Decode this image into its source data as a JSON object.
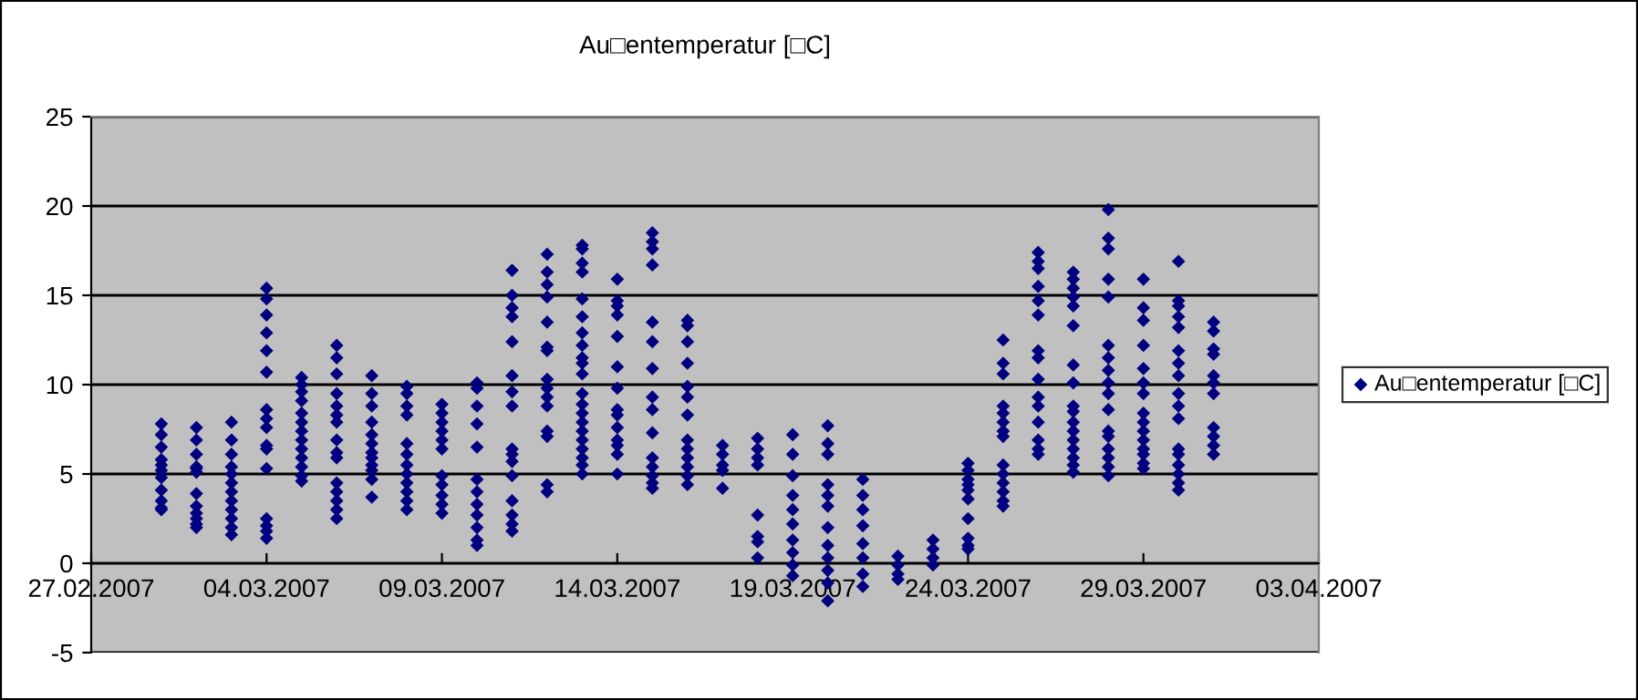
{
  "chart_data": {
    "type": "scatter",
    "title": "Au□entemperatur [□C]",
    "xlim": [
      "2007-02-27",
      "2007-04-03"
    ],
    "xticks": [
      {
        "value": "2007-02-27",
        "label": "27.02.2007"
      },
      {
        "value": "2007-03-04",
        "label": "04.03.2007"
      },
      {
        "value": "2007-03-09",
        "label": "09.03.2007"
      },
      {
        "value": "2007-03-14",
        "label": "14.03.2007"
      },
      {
        "value": "2007-03-19",
        "label": "19.03.2007"
      },
      {
        "value": "2007-03-24",
        "label": "24.03.2007"
      },
      {
        "value": "2007-03-29",
        "label": "29.03.2007"
      },
      {
        "value": "2007-04-03",
        "label": "03.04.2007"
      }
    ],
    "ylim": [
      -5,
      25
    ],
    "yticks": [
      -5,
      0,
      5,
      10,
      15,
      20,
      25
    ],
    "grid": "y",
    "legend": "right",
    "marker": "diamond",
    "series": [
      {
        "name": "Au□entemperatur [□C]",
        "color": "#000080",
        "x": [
          "2007-03-01",
          "2007-03-01",
          "2007-03-01",
          "2007-03-01",
          "2007-03-01",
          "2007-03-01",
          "2007-03-01",
          "2007-03-01",
          "2007-03-01",
          "2007-03-01",
          "2007-03-01",
          "2007-03-02",
          "2007-03-02",
          "2007-03-02",
          "2007-03-02",
          "2007-03-02",
          "2007-03-02",
          "2007-03-02",
          "2007-03-02",
          "2007-03-02",
          "2007-03-02",
          "2007-03-02",
          "2007-03-02",
          "2007-03-03",
          "2007-03-03",
          "2007-03-03",
          "2007-03-03",
          "2007-03-03",
          "2007-03-03",
          "2007-03-03",
          "2007-03-03",
          "2007-03-03",
          "2007-03-03",
          "2007-03-03",
          "2007-03-03",
          "2007-03-04",
          "2007-03-04",
          "2007-03-04",
          "2007-03-04",
          "2007-03-04",
          "2007-03-04",
          "2007-03-04",
          "2007-03-04",
          "2007-03-04",
          "2007-03-04",
          "2007-03-04",
          "2007-03-04",
          "2007-03-04",
          "2007-03-04",
          "2007-03-04",
          "2007-03-04",
          "2007-03-05",
          "2007-03-05",
          "2007-03-05",
          "2007-03-05",
          "2007-03-05",
          "2007-03-05",
          "2007-03-05",
          "2007-03-05",
          "2007-03-05",
          "2007-03-05",
          "2007-03-05",
          "2007-03-05",
          "2007-03-05",
          "2007-03-06",
          "2007-03-06",
          "2007-03-06",
          "2007-03-06",
          "2007-03-06",
          "2007-03-06",
          "2007-03-06",
          "2007-03-06",
          "2007-03-06",
          "2007-03-06",
          "2007-03-06",
          "2007-03-06",
          "2007-03-06",
          "2007-03-06",
          "2007-03-06",
          "2007-03-07",
          "2007-03-07",
          "2007-03-07",
          "2007-03-07",
          "2007-03-07",
          "2007-03-07",
          "2007-03-07",
          "2007-03-07",
          "2007-03-07",
          "2007-03-07",
          "2007-03-07",
          "2007-03-07",
          "2007-03-08",
          "2007-03-08",
          "2007-03-08",
          "2007-03-08",
          "2007-03-08",
          "2007-03-08",
          "2007-03-08",
          "2007-03-08",
          "2007-03-08",
          "2007-03-08",
          "2007-03-08",
          "2007-03-08",
          "2007-03-09",
          "2007-03-09",
          "2007-03-09",
          "2007-03-09",
          "2007-03-09",
          "2007-03-09",
          "2007-03-09",
          "2007-03-09",
          "2007-03-09",
          "2007-03-09",
          "2007-03-09",
          "2007-03-10",
          "2007-03-10",
          "2007-03-10",
          "2007-03-10",
          "2007-03-10",
          "2007-03-10",
          "2007-03-10",
          "2007-03-10",
          "2007-03-10",
          "2007-03-10",
          "2007-03-10",
          "2007-03-10",
          "2007-03-11",
          "2007-03-11",
          "2007-03-11",
          "2007-03-11",
          "2007-03-11",
          "2007-03-11",
          "2007-03-11",
          "2007-03-11",
          "2007-03-11",
          "2007-03-11",
          "2007-03-11",
          "2007-03-11",
          "2007-03-11",
          "2007-03-11",
          "2007-03-11",
          "2007-03-11",
          "2007-03-12",
          "2007-03-12",
          "2007-03-12",
          "2007-03-12",
          "2007-03-12",
          "2007-03-12",
          "2007-03-12",
          "2007-03-12",
          "2007-03-12",
          "2007-03-12",
          "2007-03-12",
          "2007-03-12",
          "2007-03-12",
          "2007-03-12",
          "2007-03-12",
          "2007-03-13",
          "2007-03-13",
          "2007-03-13",
          "2007-03-13",
          "2007-03-13",
          "2007-03-13",
          "2007-03-13",
          "2007-03-13",
          "2007-03-13",
          "2007-03-13",
          "2007-03-13",
          "2007-03-13",
          "2007-03-13",
          "2007-03-13",
          "2007-03-13",
          "2007-03-13",
          "2007-03-13",
          "2007-03-13",
          "2007-03-13",
          "2007-03-13",
          "2007-03-13",
          "2007-03-14",
          "2007-03-14",
          "2007-03-14",
          "2007-03-14",
          "2007-03-14",
          "2007-03-14",
          "2007-03-14",
          "2007-03-14",
          "2007-03-14",
          "2007-03-14",
          "2007-03-14",
          "2007-03-14",
          "2007-03-14",
          "2007-03-14",
          "2007-03-15",
          "2007-03-15",
          "2007-03-15",
          "2007-03-15",
          "2007-03-15",
          "2007-03-15",
          "2007-03-15",
          "2007-03-15",
          "2007-03-15",
          "2007-03-15",
          "2007-03-15",
          "2007-03-15",
          "2007-03-15",
          "2007-03-15",
          "2007-03-15",
          "2007-03-16",
          "2007-03-16",
          "2007-03-16",
          "2007-03-16",
          "2007-03-16",
          "2007-03-16",
          "2007-03-16",
          "2007-03-16",
          "2007-03-16",
          "2007-03-16",
          "2007-03-16",
          "2007-03-16",
          "2007-03-16",
          "2007-03-17",
          "2007-03-17",
          "2007-03-17",
          "2007-03-17",
          "2007-03-17",
          "2007-03-18",
          "2007-03-18",
          "2007-03-18",
          "2007-03-18",
          "2007-03-18",
          "2007-03-18",
          "2007-03-18",
          "2007-03-18",
          "2007-03-19",
          "2007-03-19",
          "2007-03-19",
          "2007-03-19",
          "2007-03-19",
          "2007-03-19",
          "2007-03-19",
          "2007-03-19",
          "2007-03-19",
          "2007-03-19",
          "2007-03-20",
          "2007-03-20",
          "2007-03-20",
          "2007-03-20",
          "2007-03-20",
          "2007-03-20",
          "2007-03-20",
          "2007-03-20",
          "2007-03-20",
          "2007-03-20",
          "2007-03-20",
          "2007-03-20",
          "2007-03-21",
          "2007-03-21",
          "2007-03-21",
          "2007-03-21",
          "2007-03-21",
          "2007-03-21",
          "2007-03-21",
          "2007-03-21",
          "2007-03-22",
          "2007-03-22",
          "2007-03-22",
          "2007-03-22",
          "2007-03-23",
          "2007-03-23",
          "2007-03-23",
          "2007-03-23",
          "2007-03-24",
          "2007-03-24",
          "2007-03-24",
          "2007-03-24",
          "2007-03-24",
          "2007-03-24",
          "2007-03-24",
          "2007-03-24",
          "2007-03-24",
          "2007-03-24",
          "2007-03-25",
          "2007-03-25",
          "2007-03-25",
          "2007-03-25",
          "2007-03-25",
          "2007-03-25",
          "2007-03-25",
          "2007-03-25",
          "2007-03-25",
          "2007-03-25",
          "2007-03-25",
          "2007-03-25",
          "2007-03-25",
          "2007-03-25",
          "2007-03-26",
          "2007-03-26",
          "2007-03-26",
          "2007-03-26",
          "2007-03-26",
          "2007-03-26",
          "2007-03-26",
          "2007-03-26",
          "2007-03-26",
          "2007-03-26",
          "2007-03-26",
          "2007-03-26",
          "2007-03-26",
          "2007-03-26",
          "2007-03-26",
          "2007-03-27",
          "2007-03-27",
          "2007-03-27",
          "2007-03-27",
          "2007-03-27",
          "2007-03-27",
          "2007-03-27",
          "2007-03-27",
          "2007-03-27",
          "2007-03-27",
          "2007-03-27",
          "2007-03-27",
          "2007-03-27",
          "2007-03-27",
          "2007-03-27",
          "2007-03-27",
          "2007-03-27",
          "2007-03-28",
          "2007-03-28",
          "2007-03-28",
          "2007-03-28",
          "2007-03-28",
          "2007-03-28",
          "2007-03-28",
          "2007-03-28",
          "2007-03-28",
          "2007-03-28",
          "2007-03-28",
          "2007-03-28",
          "2007-03-28",
          "2007-03-28",
          "2007-03-28",
          "2007-03-28",
          "2007-03-28",
          "2007-03-29",
          "2007-03-29",
          "2007-03-29",
          "2007-03-29",
          "2007-03-29",
          "2007-03-29",
          "2007-03-29",
          "2007-03-29",
          "2007-03-29",
          "2007-03-29",
          "2007-03-29",
          "2007-03-29",
          "2007-03-29",
          "2007-03-29",
          "2007-03-29",
          "2007-03-30",
          "2007-03-30",
          "2007-03-30",
          "2007-03-30",
          "2007-03-30",
          "2007-03-30",
          "2007-03-30",
          "2007-03-30",
          "2007-03-30",
          "2007-03-30",
          "2007-03-30",
          "2007-03-30",
          "2007-03-30",
          "2007-03-30",
          "2007-03-30",
          "2007-03-30",
          "2007-03-30",
          "2007-03-31",
          "2007-03-31",
          "2007-03-31",
          "2007-03-31",
          "2007-03-31",
          "2007-03-31",
          "2007-03-31",
          "2007-03-31",
          "2007-03-31",
          "2007-03-31",
          "2007-03-31"
        ],
        "values": [
          7.8,
          7.2,
          6.5,
          5.8,
          5.5,
          5.2,
          4.8,
          4.1,
          3.5,
          3.1,
          3.0,
          7.6,
          6.9,
          6.1,
          5.4,
          5.3,
          5.1,
          3.9,
          3.2,
          2.8,
          2.5,
          2.2,
          2.0,
          7.9,
          6.9,
          6.1,
          5.4,
          5.0,
          4.5,
          4.0,
          3.5,
          3.0,
          2.5,
          2.0,
          1.6,
          15.4,
          14.8,
          13.9,
          12.9,
          11.9,
          10.7,
          8.6,
          8.1,
          7.6,
          6.6,
          6.4,
          5.3,
          2.5,
          2.1,
          1.8,
          1.4,
          10.4,
          10.0,
          9.6,
          9.1,
          8.4,
          7.9,
          7.4,
          6.9,
          6.4,
          5.9,
          5.4,
          4.9,
          4.6,
          12.2,
          11.5,
          10.6,
          9.5,
          8.8,
          8.3,
          7.9,
          6.9,
          6.2,
          5.9,
          4.5,
          4.0,
          3.5,
          3.0,
          2.5,
          10.5,
          9.5,
          8.8,
          7.9,
          7.2,
          6.7,
          6.2,
          5.9,
          5.5,
          5.2,
          4.7,
          3.7,
          9.9,
          9.5,
          8.8,
          8.3,
          6.7,
          6.1,
          5.5,
          5.0,
          4.5,
          4.0,
          3.5,
          3.0,
          8.9,
          8.4,
          7.9,
          7.4,
          6.9,
          6.4,
          4.9,
          4.4,
          3.8,
          3.3,
          2.8,
          10.1,
          9.8,
          8.8,
          7.8,
          6.5,
          4.7,
          4.0,
          3.3,
          2.7,
          2.0,
          1.3,
          1.0,
          16.4,
          15.0,
          14.3,
          13.8,
          12.4,
          10.5,
          9.6,
          8.8,
          6.4,
          6.1,
          5.7,
          4.9,
          3.5,
          2.7,
          2.2,
          1.8,
          17.3,
          16.3,
          15.6,
          14.9,
          13.5,
          12.1,
          11.9,
          10.3,
          9.8,
          9.3,
          8.8,
          7.4,
          7.1,
          4.4,
          4.0,
          17.8,
          17.6,
          16.8,
          16.3,
          14.8,
          13.8,
          12.9,
          12.2,
          11.5,
          11.2,
          10.6,
          9.5,
          8.9,
          8.4,
          7.9,
          7.4,
          6.9,
          6.4,
          5.9,
          5.5,
          5.0,
          15.9,
          14.7,
          14.4,
          13.9,
          12.7,
          11.0,
          9.8,
          8.6,
          8.3,
          7.6,
          6.9,
          6.6,
          6.1,
          5.0,
          18.5,
          18.0,
          17.6,
          16.7,
          13.5,
          12.4,
          10.9,
          9.3,
          8.6,
          7.3,
          5.9,
          5.4,
          4.9,
          4.5,
          4.2,
          13.6,
          13.3,
          12.4,
          11.2,
          9.9,
          9.3,
          8.3,
          6.9,
          6.4,
          5.9,
          5.4,
          4.9,
          4.4,
          6.6,
          6.1,
          5.5,
          5.2,
          4.2,
          7.0,
          6.4,
          5.9,
          5.5,
          2.7,
          1.5,
          1.2,
          0.3,
          7.2,
          6.1,
          4.9,
          3.8,
          3.0,
          2.2,
          1.3,
          0.6,
          -0.1,
          -0.7,
          7.7,
          6.7,
          6.1,
          4.4,
          3.8,
          3.2,
          2.0,
          1.0,
          0.3,
          -0.4,
          -1.1,
          -2.1,
          4.7,
          3.8,
          3.0,
          2.1,
          1.1,
          0.3,
          -0.6,
          -1.3,
          0.4,
          -0.1,
          -0.6,
          -0.9,
          1.3,
          0.8,
          0.3,
          -0.1,
          5.6,
          5.2,
          4.7,
          4.4,
          4.1,
          3.6,
          2.5,
          1.4,
          1.0,
          0.8,
          12.5,
          11.2,
          10.6,
          8.8,
          8.4,
          7.9,
          7.4,
          7.1,
          5.5,
          5.0,
          4.5,
          4.0,
          3.5,
          3.2,
          17.4,
          16.9,
          16.5,
          15.5,
          14.7,
          13.9,
          11.9,
          11.5,
          10.3,
          9.3,
          8.8,
          7.9,
          6.9,
          6.4,
          6.1,
          16.3,
          15.9,
          15.4,
          14.9,
          14.4,
          13.3,
          11.1,
          10.1,
          8.8,
          8.5,
          7.9,
          7.4,
          6.9,
          6.4,
          5.9,
          5.5,
          5.1,
          19.8,
          18.2,
          17.6,
          15.9,
          14.9,
          12.2,
          11.5,
          10.8,
          10.1,
          9.5,
          8.6,
          7.4,
          7.1,
          6.4,
          5.9,
          5.4,
          4.9,
          15.9,
          14.3,
          13.6,
          12.2,
          10.9,
          10.1,
          9.5,
          8.4,
          7.9,
          7.4,
          6.9,
          6.4,
          6.1,
          5.6,
          5.3,
          16.9,
          14.7,
          14.4,
          13.8,
          13.2,
          11.9,
          11.2,
          10.5,
          9.5,
          8.8,
          8.1,
          6.4,
          6.1,
          5.5,
          5.0,
          4.5,
          4.1,
          13.5,
          13.0,
          12.0,
          11.7,
          10.5,
          10.1,
          9.5,
          7.6,
          7.1,
          6.6,
          6.1
        ]
      }
    ]
  }
}
